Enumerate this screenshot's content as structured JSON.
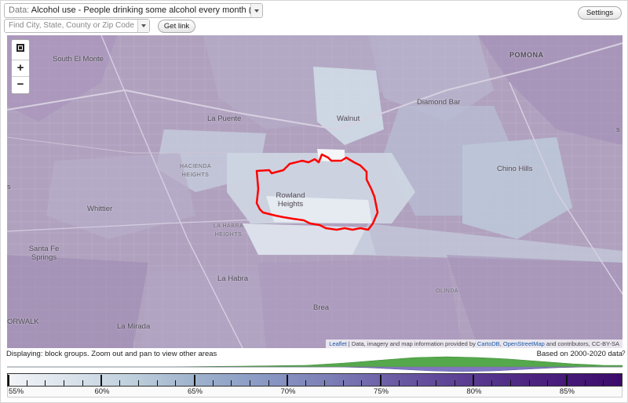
{
  "controls": {
    "data_prefix": "Data:",
    "data_value": "Alcohol use - People drinking some alcohol every month (%)",
    "find_placeholder": "Find City, State, County or Zip Code",
    "get_link_label": "Get link",
    "settings_label": "Settings"
  },
  "map": {
    "zoom_in_label": "+",
    "zoom_out_label": "−",
    "places": {
      "south_el_monte": "South El Monte",
      "pomona": "POMONA",
      "la_puente": "La Puente",
      "walnut": "Walnut",
      "diamond_bar": "Diamond Bar",
      "hacienda_heights": "HACIENDA HEIGHTS",
      "rowland_heights": "Rowland Heights",
      "chino_hills": "Chino Hills",
      "whittier": "Whittier",
      "la_habra_heights": "LA HABRA HEIGHTS",
      "santa_fe_springs": "Santa Fe Springs",
      "la_habra": "La Habra",
      "la_mirada": "La Mirada",
      "brea": "Brea",
      "olinda": "OLINDA",
      "norwalk": "ORWALK",
      "edge_s": "s"
    },
    "attribution": {
      "leaflet": "Leaflet",
      "middle": " | Data, imagery and map information provided by ",
      "carto": "CartoDB",
      "comma": ", ",
      "osm": "OpenStreetMap",
      "tail": " and contributors, CC-BY-SA"
    },
    "colors": {
      "high_purple": "#a895b9",
      "mid_blue": "#a9b6cd",
      "low_light": "#dde5ee",
      "highlight_outline": "#ff0000"
    }
  },
  "status": {
    "displaying": "Displaying: block groups. Zoom out and pan to view other areas",
    "based_on": "Based on 2000-2020 data",
    "help": "?"
  },
  "legend": {
    "min": 55,
    "max": 88,
    "labels": [
      "55%",
      "60%",
      "65%",
      "70%",
      "75%",
      "80%",
      "85%"
    ],
    "colors": {
      "green": "#55a84b",
      "purple": "#7e78c2"
    }
  }
}
